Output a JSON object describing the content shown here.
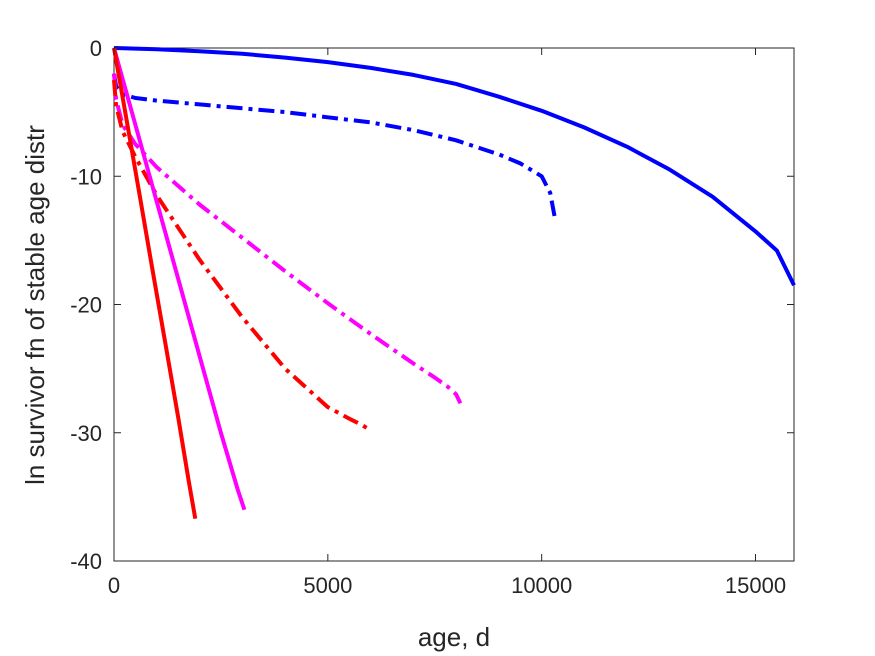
{
  "chart_data": {
    "type": "line",
    "title": "",
    "xlabel": "age, d",
    "ylabel": "ln survivor fn of stable age distr",
    "xlim": [
      0,
      15900
    ],
    "ylim": [
      -40,
      0
    ],
    "xticks": [
      0,
      5000,
      10000,
      15000
    ],
    "xtick_labels": [
      "0",
      "5000",
      "10000",
      "15000"
    ],
    "yticks": [
      0,
      -10,
      -20,
      -30,
      -40
    ],
    "ytick_labels": [
      "0",
      "-10",
      "-20",
      "-30",
      "-40"
    ],
    "grid": false,
    "legend": "none",
    "series": [
      {
        "color": "#0000ff",
        "style": "solid",
        "x": [
          0,
          1000,
          2000,
          3000,
          4000,
          5000,
          6000,
          7000,
          8000,
          9000,
          10000,
          11000,
          12000,
          13000,
          14000,
          15000,
          15500,
          15900
        ],
        "y": [
          0,
          -0.1,
          -0.25,
          -0.45,
          -0.75,
          -1.1,
          -1.55,
          -2.1,
          -2.8,
          -3.8,
          -4.9,
          -6.2,
          -7.7,
          -9.5,
          -11.6,
          -14.3,
          -15.8,
          -18.5
        ]
      },
      {
        "color": "#0000ff",
        "style": "dashdot",
        "x": [
          0,
          50,
          200,
          500,
          1000,
          2000,
          3000,
          4000,
          5000,
          6000,
          7000,
          8000,
          9000,
          9500,
          10000,
          10200,
          10300
        ],
        "y": [
          -2.0,
          -3.0,
          -3.6,
          -3.9,
          -4.1,
          -4.4,
          -4.7,
          -5.0,
          -5.4,
          -5.8,
          -6.4,
          -7.2,
          -8.3,
          -9.0,
          -10.0,
          -11.3,
          -13.1
        ]
      },
      {
        "color": "#ff00ff",
        "style": "dashdot",
        "x": [
          0,
          50,
          200,
          500,
          1000,
          2000,
          3000,
          4000,
          5000,
          6000,
          7000,
          7500,
          7800,
          8000,
          8100
        ],
        "y": [
          -2.0,
          -4.0,
          -6.0,
          -7.5,
          -9.3,
          -12.2,
          -14.8,
          -17.4,
          -19.9,
          -22.3,
          -24.6,
          -25.7,
          -26.4,
          -27.0,
          -27.7
        ]
      },
      {
        "color": "#ff0000",
        "style": "dashdot",
        "x": [
          0,
          50,
          200,
          500,
          1000,
          2000,
          3000,
          4000,
          5000,
          5500,
          5800,
          6000
        ],
        "y": [
          -2.5,
          -4.5,
          -6.5,
          -8.5,
          -11.5,
          -16.5,
          -21.0,
          -25.0,
          -28.0,
          -28.9,
          -29.4,
          -29.8
        ]
      },
      {
        "color": "#ff00ff",
        "style": "solid",
        "x": [
          0,
          500,
          1000,
          1500,
          2000,
          2500,
          2900,
          3050
        ],
        "y": [
          0,
          -6.0,
          -12.0,
          -18.0,
          -24.0,
          -30.0,
          -34.5,
          -36.0
        ]
      },
      {
        "color": "#ff0000",
        "style": "solid",
        "x": [
          0,
          300,
          600,
          900,
          1200,
          1500,
          1750,
          1900
        ],
        "y": [
          0,
          -5.7,
          -11.5,
          -17.3,
          -23.0,
          -28.8,
          -33.8,
          -36.7
        ]
      }
    ]
  }
}
